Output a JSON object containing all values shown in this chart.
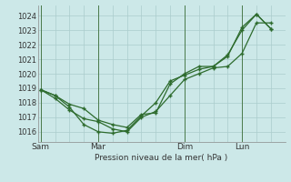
{
  "background_color": "#cce8e8",
  "grid_color": "#aacccc",
  "line_color": "#2d6b2d",
  "marker_color": "#2d6b2d",
  "ylabel_ticks": [
    1016,
    1017,
    1018,
    1019,
    1020,
    1021,
    1022,
    1023,
    1024
  ],
  "ylim": [
    1015.3,
    1024.7
  ],
  "xlabel": "Pression niveau de la mer( hPa )",
  "x_tick_labels": [
    "Sam",
    "Mar",
    "Dim",
    "Lun"
  ],
  "x_tick_positions": [
    0,
    2,
    5,
    7
  ],
  "xlim": [
    -0.1,
    8.5
  ],
  "line1_x": [
    0,
    0.5,
    1.0,
    1.5,
    2.0,
    2.5,
    3.0,
    3.5,
    4.0,
    4.5,
    5.0,
    5.5,
    6.0,
    6.5,
    7.0,
    7.5,
    8.0
  ],
  "line1_y": [
    1018.9,
    1018.5,
    1017.7,
    1016.5,
    1016.0,
    1015.9,
    1016.1,
    1017.1,
    1018.0,
    1019.5,
    1019.9,
    1020.3,
    1020.5,
    1021.3,
    1023.0,
    1024.1,
    1023.1
  ],
  "line2_x": [
    0,
    0.5,
    1.0,
    1.5,
    2.0,
    2.5,
    3.0,
    3.5,
    4.0,
    4.5,
    5.0,
    5.5,
    6.0,
    6.5,
    7.0,
    7.5,
    8.0
  ],
  "line2_y": [
    1018.9,
    1018.3,
    1017.5,
    1016.9,
    1016.7,
    1016.2,
    1016.0,
    1017.0,
    1017.4,
    1018.5,
    1019.6,
    1020.0,
    1020.4,
    1020.5,
    1021.4,
    1023.5,
    1023.5
  ],
  "line3_x": [
    0,
    0.5,
    1.0,
    1.5,
    2.0,
    2.5,
    3.0,
    3.5,
    4.0,
    4.5,
    5.0,
    5.5,
    6.0,
    6.5,
    7.0,
    7.5,
    8.0
  ],
  "line3_y": [
    1018.9,
    1018.5,
    1017.9,
    1017.6,
    1016.8,
    1016.5,
    1016.3,
    1017.2,
    1017.3,
    1019.3,
    1020.0,
    1020.5,
    1020.5,
    1021.2,
    1023.2,
    1024.1,
    1023.1
  ],
  "vline_positions": [
    0,
    2,
    5,
    7
  ]
}
